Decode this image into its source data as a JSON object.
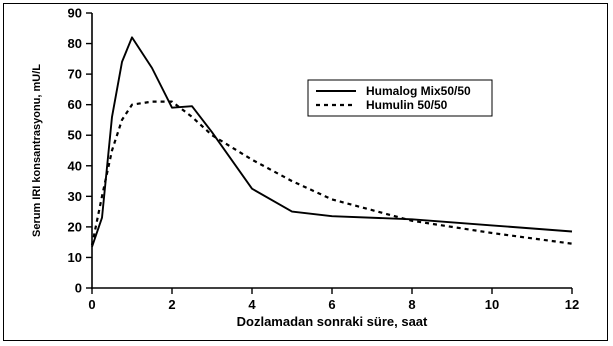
{
  "chart_data": {
    "type": "line",
    "title": "",
    "xlabel": "Dozlamadan sonraki süre, saat",
    "ylabel": "Serum IRI konsantrasyonu, mU/L",
    "xlim": [
      0,
      12
    ],
    "ylim": [
      0,
      90
    ],
    "xticks": [
      0,
      2,
      4,
      6,
      8,
      10,
      12
    ],
    "yticks": [
      0,
      10,
      20,
      30,
      40,
      50,
      60,
      70,
      80,
      90
    ],
    "grid": false,
    "legend_position": "upper-right",
    "series": [
      {
        "name": "Humalog Mix50/50",
        "style": "solid",
        "color": "#000000",
        "x": [
          0,
          0.25,
          0.5,
          0.75,
          1.0,
          1.5,
          2.0,
          2.5,
          3.0,
          4.0,
          5.0,
          6.0,
          8.0,
          10.0,
          12.0
        ],
        "y": [
          13.5,
          23,
          56,
          74,
          82,
          72,
          59,
          59.5,
          51,
          32.5,
          25,
          23.5,
          22.5,
          20.5,
          18.5
        ]
      },
      {
        "name": "Humulin 50/50",
        "style": "dashed",
        "color": "#000000",
        "x": [
          0,
          0.25,
          0.5,
          0.75,
          1.0,
          1.5,
          2.0,
          2.5,
          3.0,
          4.0,
          5.0,
          6.0,
          8.0,
          10.0,
          12.0
        ],
        "y": [
          14,
          30,
          45,
          55,
          60,
          61,
          61,
          56,
          50,
          42,
          35,
          29,
          22,
          18,
          14.5
        ]
      }
    ]
  }
}
